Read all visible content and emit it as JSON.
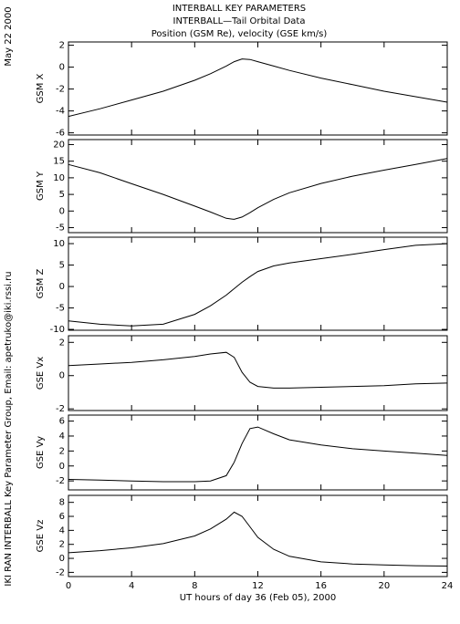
{
  "title": [
    "INTERBALL KEY PARAMETERS",
    "INTERBALL—Tail Orbital Data",
    "Position (GSM Re), velocity (GSE km/s)"
  ],
  "date": "May 22 2000",
  "credit": "IKI RAN INTERBALL Key Parameter Group, Email: apetruko@iki.rssi.ru",
  "chart_data": [
    {
      "type": "line",
      "ylabel": "GSM X",
      "color": "#000000",
      "x": [
        0,
        2,
        4,
        6,
        8,
        9,
        10,
        10.5,
        11,
        11.5,
        12,
        13,
        14,
        16,
        18,
        20,
        22,
        24
      ],
      "values": [
        -4.5,
        -3.8,
        -3.0,
        -2.2,
        -1.2,
        -0.6,
        0.1,
        0.5,
        0.75,
        0.7,
        0.5,
        0.1,
        -0.3,
        -1.0,
        -1.6,
        -2.2,
        -2.7,
        -3.2
      ],
      "xlim": [
        0,
        24
      ],
      "xticks": [
        0,
        4,
        8,
        12,
        16,
        20,
        24
      ],
      "ylim": [
        -6.2,
        2.3
      ],
      "yticks": [
        2,
        0,
        -2,
        -4,
        -6
      ]
    },
    {
      "type": "line",
      "ylabel": "GSM Y",
      "color": "#000000",
      "x": [
        0,
        2,
        4,
        6,
        8,
        9,
        10,
        10.5,
        11,
        11.5,
        12,
        13,
        14,
        16,
        18,
        20,
        22,
        24
      ],
      "values": [
        14,
        11.5,
        8.2,
        5,
        1.5,
        -0.3,
        -2.2,
        -2.5,
        -1.8,
        -0.5,
        1,
        3.5,
        5.5,
        8.3,
        10.5,
        12.3,
        14,
        15.8
      ],
      "xlim": [
        0,
        24
      ],
      "xticks": [
        0,
        4,
        8,
        12,
        16,
        20,
        24
      ],
      "ylim": [
        -6.5,
        21.5
      ],
      "yticks": [
        20,
        15,
        10,
        5,
        0,
        -5
      ]
    },
    {
      "type": "line",
      "ylabel": "GSM Z",
      "color": "#000000",
      "x": [
        0,
        2,
        4,
        6,
        8,
        9,
        10,
        10.5,
        11,
        11.5,
        12,
        13,
        14,
        16,
        18,
        20,
        22,
        24
      ],
      "values": [
        -8,
        -8.8,
        -9.2,
        -8.8,
        -6.5,
        -4.5,
        -2,
        -0.5,
        1,
        2.3,
        3.5,
        4.8,
        5.5,
        6.5,
        7.5,
        8.6,
        9.6,
        10
      ],
      "xlim": [
        0,
        24
      ],
      "xticks": [
        0,
        4,
        8,
        12,
        16,
        20,
        24
      ],
      "ylim": [
        -10.2,
        11.5
      ],
      "yticks": [
        10,
        5,
        0,
        -5,
        -10
      ]
    },
    {
      "type": "line",
      "ylabel": "GSE Vx",
      "color": "#000000",
      "x": [
        0,
        2,
        4,
        6,
        8,
        9,
        10,
        10.5,
        11,
        11.5,
        12,
        13,
        14,
        16,
        18,
        20,
        22,
        24
      ],
      "values": [
        0.6,
        0.7,
        0.8,
        0.95,
        1.15,
        1.3,
        1.4,
        1.1,
        0.2,
        -0.4,
        -0.65,
        -0.75,
        -0.75,
        -0.7,
        -0.65,
        -0.6,
        -0.5,
        -0.45
      ],
      "xlim": [
        0,
        24
      ],
      "xticks": [
        0,
        4,
        8,
        12,
        16,
        20,
        24
      ],
      "ylim": [
        -2.1,
        2.4
      ],
      "yticks": [
        2,
        0,
        -2
      ]
    },
    {
      "type": "line",
      "ylabel": "GSE Vy",
      "color": "#000000",
      "x": [
        0,
        2,
        4,
        6,
        8,
        9,
        10,
        10.5,
        11,
        11.5,
        12,
        13,
        14,
        16,
        18,
        20,
        22,
        24
      ],
      "values": [
        -1.8,
        -1.9,
        -2.0,
        -2.1,
        -2.1,
        -2.0,
        -1.3,
        0.5,
        3,
        5,
        5.2,
        4.3,
        3.5,
        2.8,
        2.3,
        2,
        1.7,
        1.4
      ],
      "xlim": [
        0,
        24
      ],
      "xticks": [
        0,
        4,
        8,
        12,
        16,
        20,
        24
      ],
      "ylim": [
        -3.2,
        6.8
      ],
      "yticks": [
        6,
        4,
        2,
        0,
        -2
      ]
    },
    {
      "type": "line",
      "ylabel": "GSE Vz",
      "color": "#000000",
      "x": [
        0,
        2,
        4,
        6,
        8,
        9,
        10,
        10.5,
        11,
        11.5,
        12,
        13,
        14,
        16,
        18,
        20,
        22,
        24
      ],
      "values": [
        0.8,
        1.1,
        1.5,
        2.1,
        3.2,
        4.2,
        5.6,
        6.6,
        6,
        4.5,
        3,
        1.3,
        0.3,
        -0.5,
        -0.8,
        -0.95,
        -1.05,
        -1.1
      ],
      "xlim": [
        0,
        24
      ],
      "xticks": [
        0,
        4,
        8,
        12,
        16,
        20,
        24
      ],
      "ylim": [
        -2.6,
        9
      ],
      "yticks": [
        8,
        6,
        4,
        2,
        0,
        -2
      ],
      "xlabel": "UT hours of day  36 (Feb 05), 2000",
      "xtick_labels": true
    }
  ]
}
